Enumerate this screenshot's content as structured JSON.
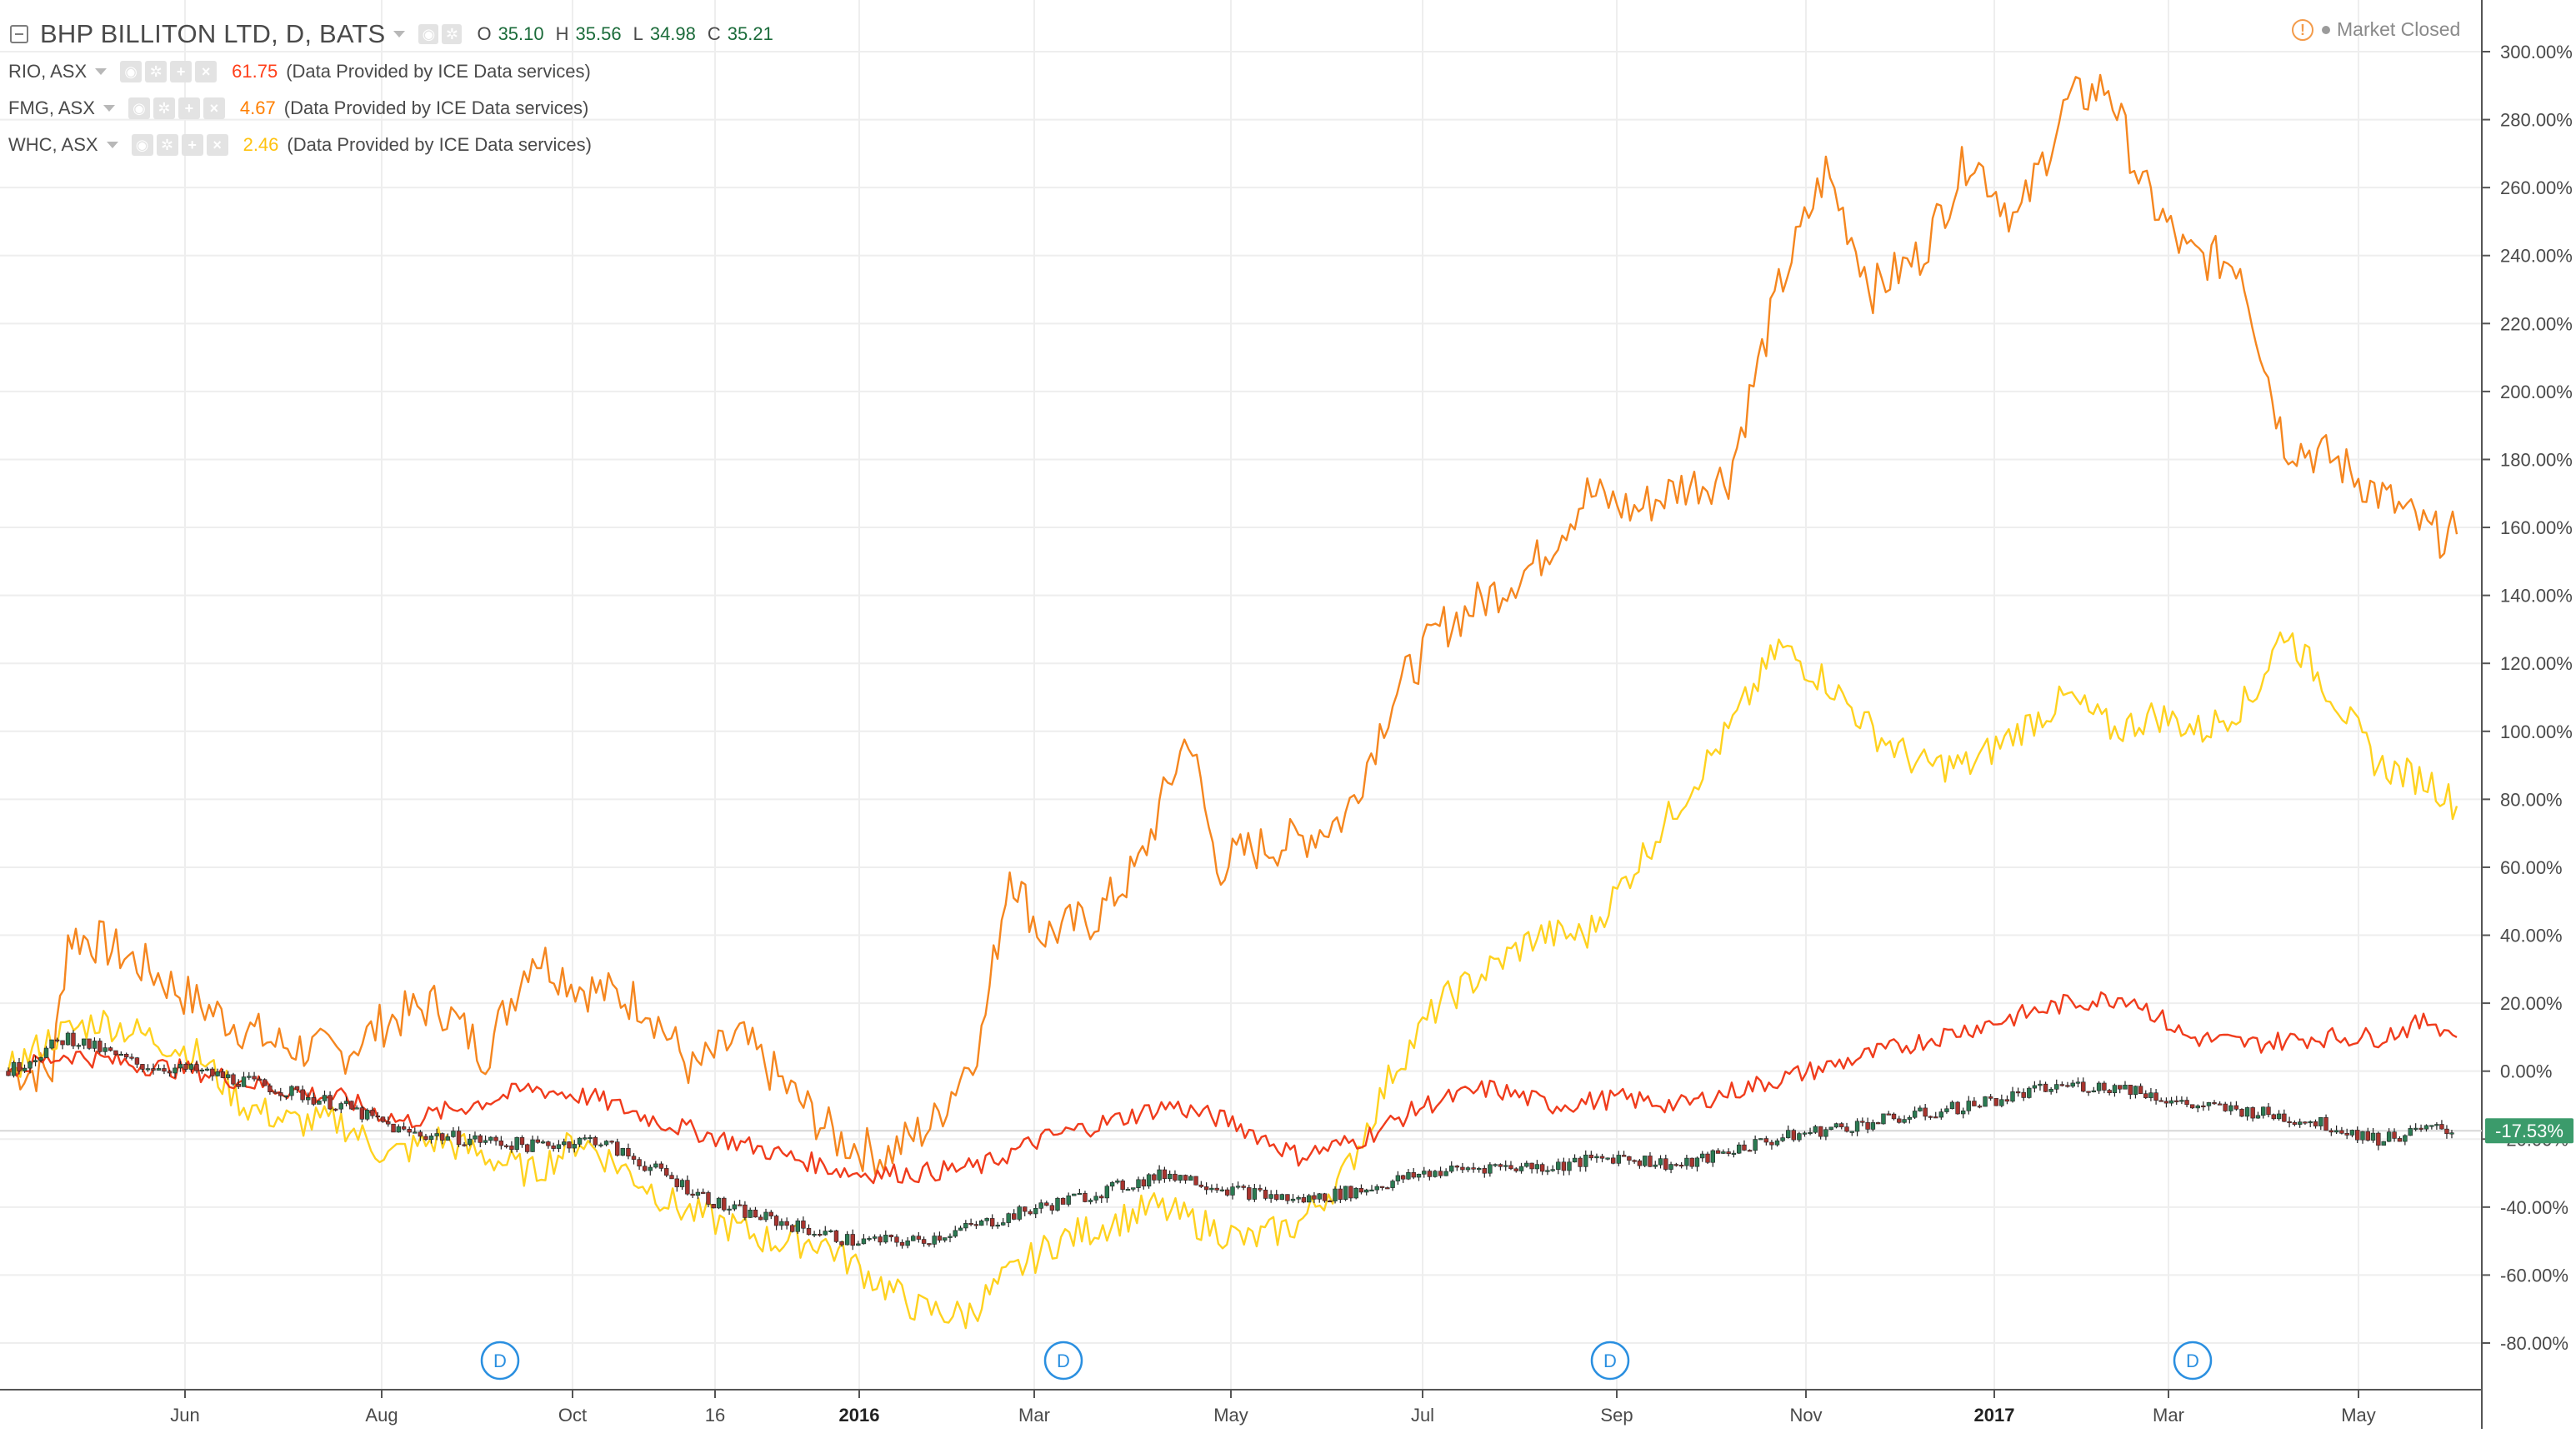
{
  "header": {
    "main_symbol": "BHP BILLITON LTD, D, BATS",
    "ohlc": {
      "o_label": "O",
      "o": "35.10",
      "h_label": "H",
      "h": "35.56",
      "l_label": "L",
      "l": "34.98",
      "c_label": "C",
      "c": "35.21"
    },
    "market_status": "Market Closed"
  },
  "legend": [
    {
      "symbol": "RIO, ASX",
      "value": "61.75",
      "provider": "(Data Provided by ICE Data services)",
      "color": "#ff3f1a"
    },
    {
      "symbol": "FMG, ASX",
      "value": "4.67",
      "provider": "(Data Provided by ICE Data services)",
      "color": "#ff7f00"
    },
    {
      "symbol": "WHC, ASX",
      "value": "2.46",
      "provider": "(Data Provided by ICE Data services)",
      "color": "#ffc20e"
    }
  ],
  "colors": {
    "rio": "#f03c1c",
    "fmg": "#f5861f",
    "whc": "#ffd21f",
    "bhp_up": "#2b7a52",
    "bhp_down": "#a8342e",
    "grid": "#eeeeee",
    "axis_text": "#4a4a4a",
    "badge": "#3b9b6b",
    "event": "#2a8fe0"
  },
  "chart_data": {
    "type": "line",
    "x_axis_labels": [
      "Jun",
      "Aug",
      "Oct",
      "16",
      "2016",
      "Mar",
      "May",
      "Jul",
      "Sep",
      "Nov",
      "2017",
      "Mar",
      "May"
    ],
    "x_start": "2015-04-21",
    "x_end": "2017-06-09",
    "y_axis_labels": [
      "300.00%",
      "280.00%",
      "260.00%",
      "240.00%",
      "220.00%",
      "200.00%",
      "180.00%",
      "160.00%",
      "140.00%",
      "120.00%",
      "100.00%",
      "80.00%",
      "60.00%",
      "40.00%",
      "20.00%",
      "0.00%",
      "-20.00%",
      "-40.00%",
      "-60.00%",
      "-80.00%"
    ],
    "ylim": [
      -80,
      300
    ],
    "y_unit": "%",
    "grid": true,
    "current_value_badge": "-17.53%",
    "series": [
      {
        "name": "FMG, ASX",
        "x": [
          "2015-04-21",
          "2015-05-05",
          "2015-05-10",
          "2015-05-20",
          "2015-06-05",
          "2015-06-20",
          "2015-07-15",
          "2015-08-05",
          "2015-08-20",
          "2015-09-05",
          "2015-09-20",
          "2015-10-05",
          "2015-10-20",
          "2015-11-10",
          "2015-11-25",
          "2015-12-10",
          "2015-12-25",
          "2016-01-10",
          "2016-01-25",
          "2016-02-10",
          "2016-02-25",
          "2016-03-05",
          "2016-03-15",
          "2016-04-01",
          "2016-04-15",
          "2016-05-01",
          "2016-05-10",
          "2016-05-20",
          "2016-06-05",
          "2016-06-20",
          "2016-07-05",
          "2016-07-20",
          "2016-08-05",
          "2016-08-20",
          "2016-09-05",
          "2016-09-20",
          "2016-10-05",
          "2016-10-20",
          "2016-11-05",
          "2016-11-20",
          "2016-12-05",
          "2016-12-20",
          "2017-01-05",
          "2017-01-20",
          "2017-02-05",
          "2017-02-18",
          "2017-03-01",
          "2017-03-15",
          "2017-04-01",
          "2017-04-15",
          "2017-05-01",
          "2017-05-15",
          "2017-06-01",
          "2017-06-09"
        ],
        "values": [
          0,
          0,
          40,
          38,
          30,
          20,
          8,
          5,
          15,
          20,
          5,
          35,
          25,
          20,
          0,
          10,
          -5,
          -20,
          -25,
          -15,
          10,
          60,
          40,
          45,
          60,
          100,
          60,
          65,
          68,
          75,
          110,
          130,
          140,
          150,
          170,
          165,
          172,
          175,
          230,
          265,
          230,
          240,
          270,
          250,
          285,
          290,
          260,
          240,
          238,
          185,
          180,
          170,
          158,
          158
        ]
      },
      {
        "name": "WHC, ASX",
        "x": [
          "2015-04-21",
          "2015-05-05",
          "2015-05-20",
          "2015-06-05",
          "2015-06-20",
          "2015-07-05",
          "2015-07-20",
          "2015-08-05",
          "2015-08-20",
          "2015-09-05",
          "2015-09-20",
          "2015-10-05",
          "2015-10-20",
          "2015-11-05",
          "2015-11-20",
          "2015-12-05",
          "2015-12-20",
          "2016-01-05",
          "2016-01-20",
          "2016-02-05",
          "2016-02-20",
          "2016-03-05",
          "2016-03-20",
          "2016-04-05",
          "2016-04-20",
          "2016-05-05",
          "2016-05-20",
          "2016-06-05",
          "2016-06-20",
          "2016-07-05",
          "2016-07-20",
          "2016-08-05",
          "2016-08-20",
          "2016-09-05",
          "2016-09-20",
          "2016-10-05",
          "2016-10-20",
          "2016-11-05",
          "2016-11-20",
          "2016-12-05",
          "2016-12-20",
          "2017-01-05",
          "2017-01-20",
          "2017-02-05",
          "2017-02-20",
          "2017-03-05",
          "2017-03-20",
          "2017-04-05",
          "2017-04-15",
          "2017-05-01",
          "2017-05-15",
          "2017-06-01",
          "2017-06-09"
        ],
        "values": [
          0,
          10,
          15,
          10,
          5,
          -10,
          -15,
          -15,
          -25,
          -20,
          -25,
          -30,
          -20,
          -30,
          -40,
          -45,
          -50,
          -50,
          -60,
          -70,
          -72,
          -60,
          -50,
          -45,
          -40,
          -45,
          -50,
          -45,
          -30,
          0,
          20,
          30,
          40,
          40,
          60,
          80,
          100,
          125,
          115,
          100,
          90,
          90,
          100,
          110,
          100,
          105,
          100,
          110,
          130,
          110,
          90,
          85,
          78
        ]
      },
      {
        "name": "RIO, ASX",
        "x": [
          "2015-04-21",
          "2015-05-10",
          "2015-06-01",
          "2015-06-20",
          "2015-07-15",
          "2015-08-05",
          "2015-08-25",
          "2015-09-15",
          "2015-10-05",
          "2015-10-25",
          "2015-11-15",
          "2015-12-05",
          "2015-12-25",
          "2016-01-15",
          "2016-02-05",
          "2016-02-25",
          "2016-03-15",
          "2016-04-05",
          "2016-04-25",
          "2016-05-15",
          "2016-06-05",
          "2016-06-25",
          "2016-07-15",
          "2016-08-05",
          "2016-08-25",
          "2016-09-15",
          "2016-10-05",
          "2016-10-25",
          "2016-11-15",
          "2016-12-05",
          "2016-12-25",
          "2017-01-15",
          "2017-02-05",
          "2017-02-25",
          "2017-03-15",
          "2017-04-05",
          "2017-04-25",
          "2017-05-15",
          "2017-06-01",
          "2017-06-09"
        ],
        "values": [
          0,
          5,
          2,
          0,
          -5,
          -8,
          -15,
          -10,
          -5,
          -8,
          -15,
          -20,
          -25,
          -30,
          -30,
          -28,
          -20,
          -15,
          -10,
          -15,
          -25,
          -20,
          -10,
          -5,
          -10,
          -8,
          -10,
          -5,
          0,
          5,
          10,
          15,
          20,
          22,
          10,
          8,
          10,
          10,
          15,
          10
        ]
      }
    ],
    "candles": {
      "name": "BHP BILLITON LTD, D, BATS",
      "x": [
        "2015-04-21",
        "2015-05-10",
        "2015-06-01",
        "2015-06-20",
        "2015-07-15",
        "2015-08-05",
        "2015-08-25",
        "2015-09-15",
        "2015-10-05",
        "2015-10-25",
        "2015-11-15",
        "2015-12-05",
        "2015-12-25",
        "2016-01-15",
        "2016-02-05",
        "2016-02-25",
        "2016-03-15",
        "2016-04-05",
        "2016-04-25",
        "2016-05-15",
        "2016-06-05",
        "2016-06-25",
        "2016-07-15",
        "2016-08-05",
        "2016-08-25",
        "2016-09-15",
        "2016-10-05",
        "2016-10-25",
        "2016-11-15",
        "2016-12-05",
        "2016-12-25",
        "2017-01-15",
        "2017-02-05",
        "2017-02-25",
        "2017-03-15",
        "2017-04-05",
        "2017-04-25",
        "2017-05-15",
        "2017-06-01",
        "2017-06-09"
      ],
      "values": [
        0,
        10,
        2,
        0,
        -5,
        -10,
        -18,
        -20,
        -22,
        -20,
        -30,
        -40,
        -45,
        -50,
        -50,
        -45,
        -40,
        -35,
        -30,
        -35,
        -38,
        -35,
        -30,
        -28,
        -28,
        -25,
        -28,
        -22,
        -18,
        -15,
        -12,
        -8,
        -4,
        -5,
        -10,
        -12,
        -15,
        -20,
        -17,
        -17.53
      ]
    }
  }
}
